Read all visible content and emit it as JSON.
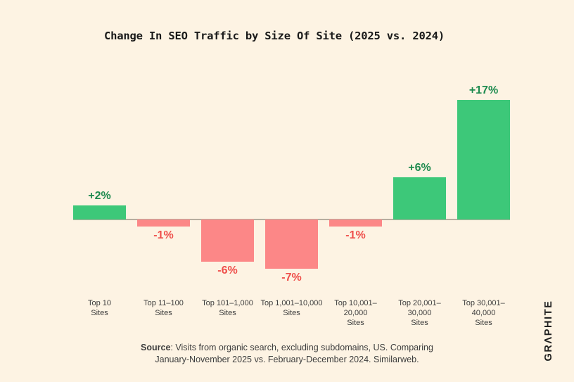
{
  "page": {
    "background_color": "#fdf3e3",
    "logo_text": "GRΛPHITE"
  },
  "chart_data": {
    "type": "bar",
    "title": "Change In SEO Traffic by Size Of Site (2025 vs. 2024)",
    "categories": [
      "Top 10 Sites",
      "Top 11–100 Sites",
      "Top 101–1,000 Sites",
      "Top 1,001–10,000 Sites",
      "Top 10,001–20,000 Sites",
      "Top 20,001–30,000 Sites",
      "Top 30,001–40,000 Sites"
    ],
    "tick_line2": "Sites",
    "values": [
      2,
      -1,
      -6,
      -7,
      -1,
      6,
      17
    ],
    "value_labels": [
      "+2%",
      "-1%",
      "-6%",
      "-7%",
      "-1%",
      "+6%",
      "+17%"
    ],
    "unit": "percent",
    "ylim": [
      -7,
      17
    ],
    "grid": false,
    "legend": false,
    "positive_color": "#3dc879",
    "negative_color": "#fc8787",
    "positive_label_color": "#1d8a4e",
    "negative_label_color": "#ef4f4b",
    "axis_line_color": "#b7ae9f"
  },
  "source": {
    "label": "Source",
    "line1_rest": ": Visits from organic search, excluding subdomains, US. Comparing",
    "line2": "January-November 2025 vs. February-December 2024. Similarweb."
  }
}
